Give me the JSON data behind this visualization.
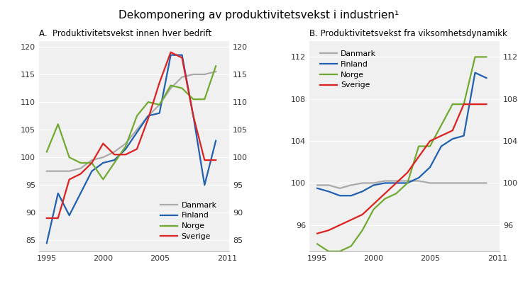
{
  "title": "Dekomponering av produktivitetsvekst i industrien¹",
  "panel_A_title": "A.  Produktivitetsvekst innen hver bedrift",
  "panel_B_title": "B. Produktivitetsvekst fra viksomhetsdynamikk",
  "legend_labels": [
    "Danmark",
    "Finland",
    "Norge",
    "Sverige"
  ],
  "colors": {
    "Danmark": "#aaaaaa",
    "Finland": "#2060b0",
    "Norge": "#70aa30",
    "Sverige": "#dd2020"
  },
  "years_A": [
    1995,
    1996,
    1997,
    1998,
    1999,
    2000,
    2001,
    2002,
    2003,
    2004,
    2005,
    2006,
    2007,
    2008,
    2009,
    2010
  ],
  "A_Danmark": [
    97.5,
    97.5,
    97.5,
    98.0,
    99.5,
    100.0,
    101.0,
    102.5,
    105.0,
    107.5,
    109.5,
    112.5,
    114.5,
    115.0,
    115.0,
    115.5
  ],
  "A_Finland": [
    84.5,
    93.5,
    89.5,
    93.5,
    97.5,
    99.0,
    99.5,
    101.5,
    104.5,
    107.5,
    108.0,
    118.5,
    118.5,
    107.5,
    95.0,
    103.0
  ],
  "A_Norge": [
    101.0,
    106.0,
    100.0,
    99.0,
    99.0,
    96.0,
    99.0,
    102.0,
    107.5,
    110.0,
    109.5,
    113.0,
    112.5,
    110.5,
    110.5,
    116.5
  ],
  "A_Sverige": [
    89.0,
    89.0,
    96.0,
    97.0,
    99.0,
    102.5,
    100.5,
    100.5,
    101.5,
    107.0,
    113.5,
    119.0,
    118.0,
    107.5,
    99.5,
    99.5
  ],
  "A_ylim": [
    83,
    121
  ],
  "A_yticks": [
    85,
    90,
    95,
    100,
    105,
    110,
    115,
    120
  ],
  "years_B": [
    1995,
    1996,
    1997,
    1998,
    1999,
    2000,
    2001,
    2002,
    2003,
    2004,
    2005,
    2006,
    2007,
    2008,
    2009,
    2010
  ],
  "B_Danmark": [
    99.8,
    99.8,
    99.5,
    99.8,
    100.0,
    100.0,
    100.2,
    100.2,
    100.2,
    100.2,
    100.0,
    100.0,
    100.0,
    100.0,
    100.0,
    100.0
  ],
  "B_Finland": [
    99.5,
    99.2,
    98.8,
    98.8,
    99.2,
    99.8,
    100.0,
    100.0,
    100.0,
    100.5,
    101.5,
    103.5,
    104.2,
    104.5,
    110.5,
    110.0
  ],
  "B_Norge": [
    94.2,
    93.5,
    93.5,
    94.0,
    95.5,
    97.5,
    98.5,
    99.0,
    100.0,
    103.5,
    103.5,
    105.5,
    107.5,
    107.5,
    112.0,
    112.0
  ],
  "B_Sverige": [
    95.2,
    95.5,
    96.0,
    96.5,
    97.0,
    98.0,
    99.0,
    100.0,
    101.0,
    102.5,
    104.0,
    104.5,
    105.0,
    107.5,
    107.5,
    107.5
  ],
  "B_ylim": [
    93.5,
    113.5
  ],
  "B_yticks": [
    96,
    100,
    104,
    108,
    112
  ],
  "xlim": [
    1994.3,
    2011.2
  ],
  "xticks": [
    1995,
    2000,
    2005,
    2011
  ],
  "plot_bg": "#f0f0f0",
  "linewidth": 1.6
}
